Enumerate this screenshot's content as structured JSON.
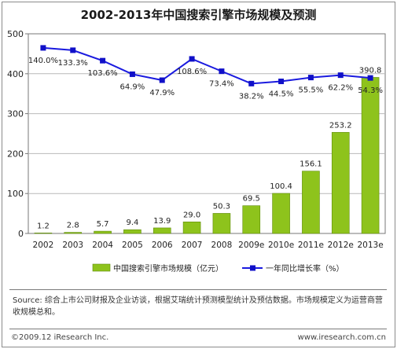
{
  "chart_data": {
    "type": "bar",
    "title": "2002-2013年中国搜索引擎市场规模及预测",
    "categories": [
      "2002",
      "2003",
      "2004",
      "2005",
      "2006",
      "2007",
      "2008",
      "2009e",
      "2010e",
      "2011e",
      "2012e",
      "2013e"
    ],
    "series": [
      {
        "name": "中国搜索引擎市场规模（亿元）",
        "kind": "bar",
        "axis": "left",
        "values": [
          1.2,
          2.8,
          5.7,
          9.4,
          13.9,
          29.0,
          50.3,
          69.5,
          100.4,
          156.1,
          253.2,
          390.8
        ],
        "labels": [
          "1.2",
          "2.8",
          "5.7",
          "9.4",
          "13.9",
          "29.0",
          "50.3",
          "69.5",
          "100.4",
          "156.1",
          "253.2",
          "390.8"
        ],
        "color": "#8ec31c"
      },
      {
        "name": "一年同比增长率（%）",
        "kind": "line",
        "axis": "hidden",
        "values": [
          140.0,
          133.3,
          103.6,
          64.9,
          47.9,
          108.6,
          73.4,
          38.2,
          44.5,
          55.5,
          62.2,
          54.3
        ],
        "labels": [
          "140.0%",
          "133.3%",
          "103.6%",
          "64.9%",
          "47.9%",
          "108.6%",
          "73.4%",
          "38.2%",
          "44.5%",
          "55.5%",
          "62.2%",
          "54.3%"
        ],
        "color": "#1a1adf"
      }
    ],
    "y_ticks": [
      "0",
      "100",
      "200",
      "300",
      "400",
      "500"
    ],
    "ylim": [
      0,
      500
    ],
    "grid": true,
    "legend_position": "bottom"
  },
  "source_text": "Source: 综合上市公司财报及企业访谈，根据艾瑞统计预测模型统计及预估数据。市场规模定义为运营商营收规模总和。",
  "footer": {
    "left": "©2009.12 iResearch Inc.",
    "right": "www.iresearch.com.cn"
  }
}
